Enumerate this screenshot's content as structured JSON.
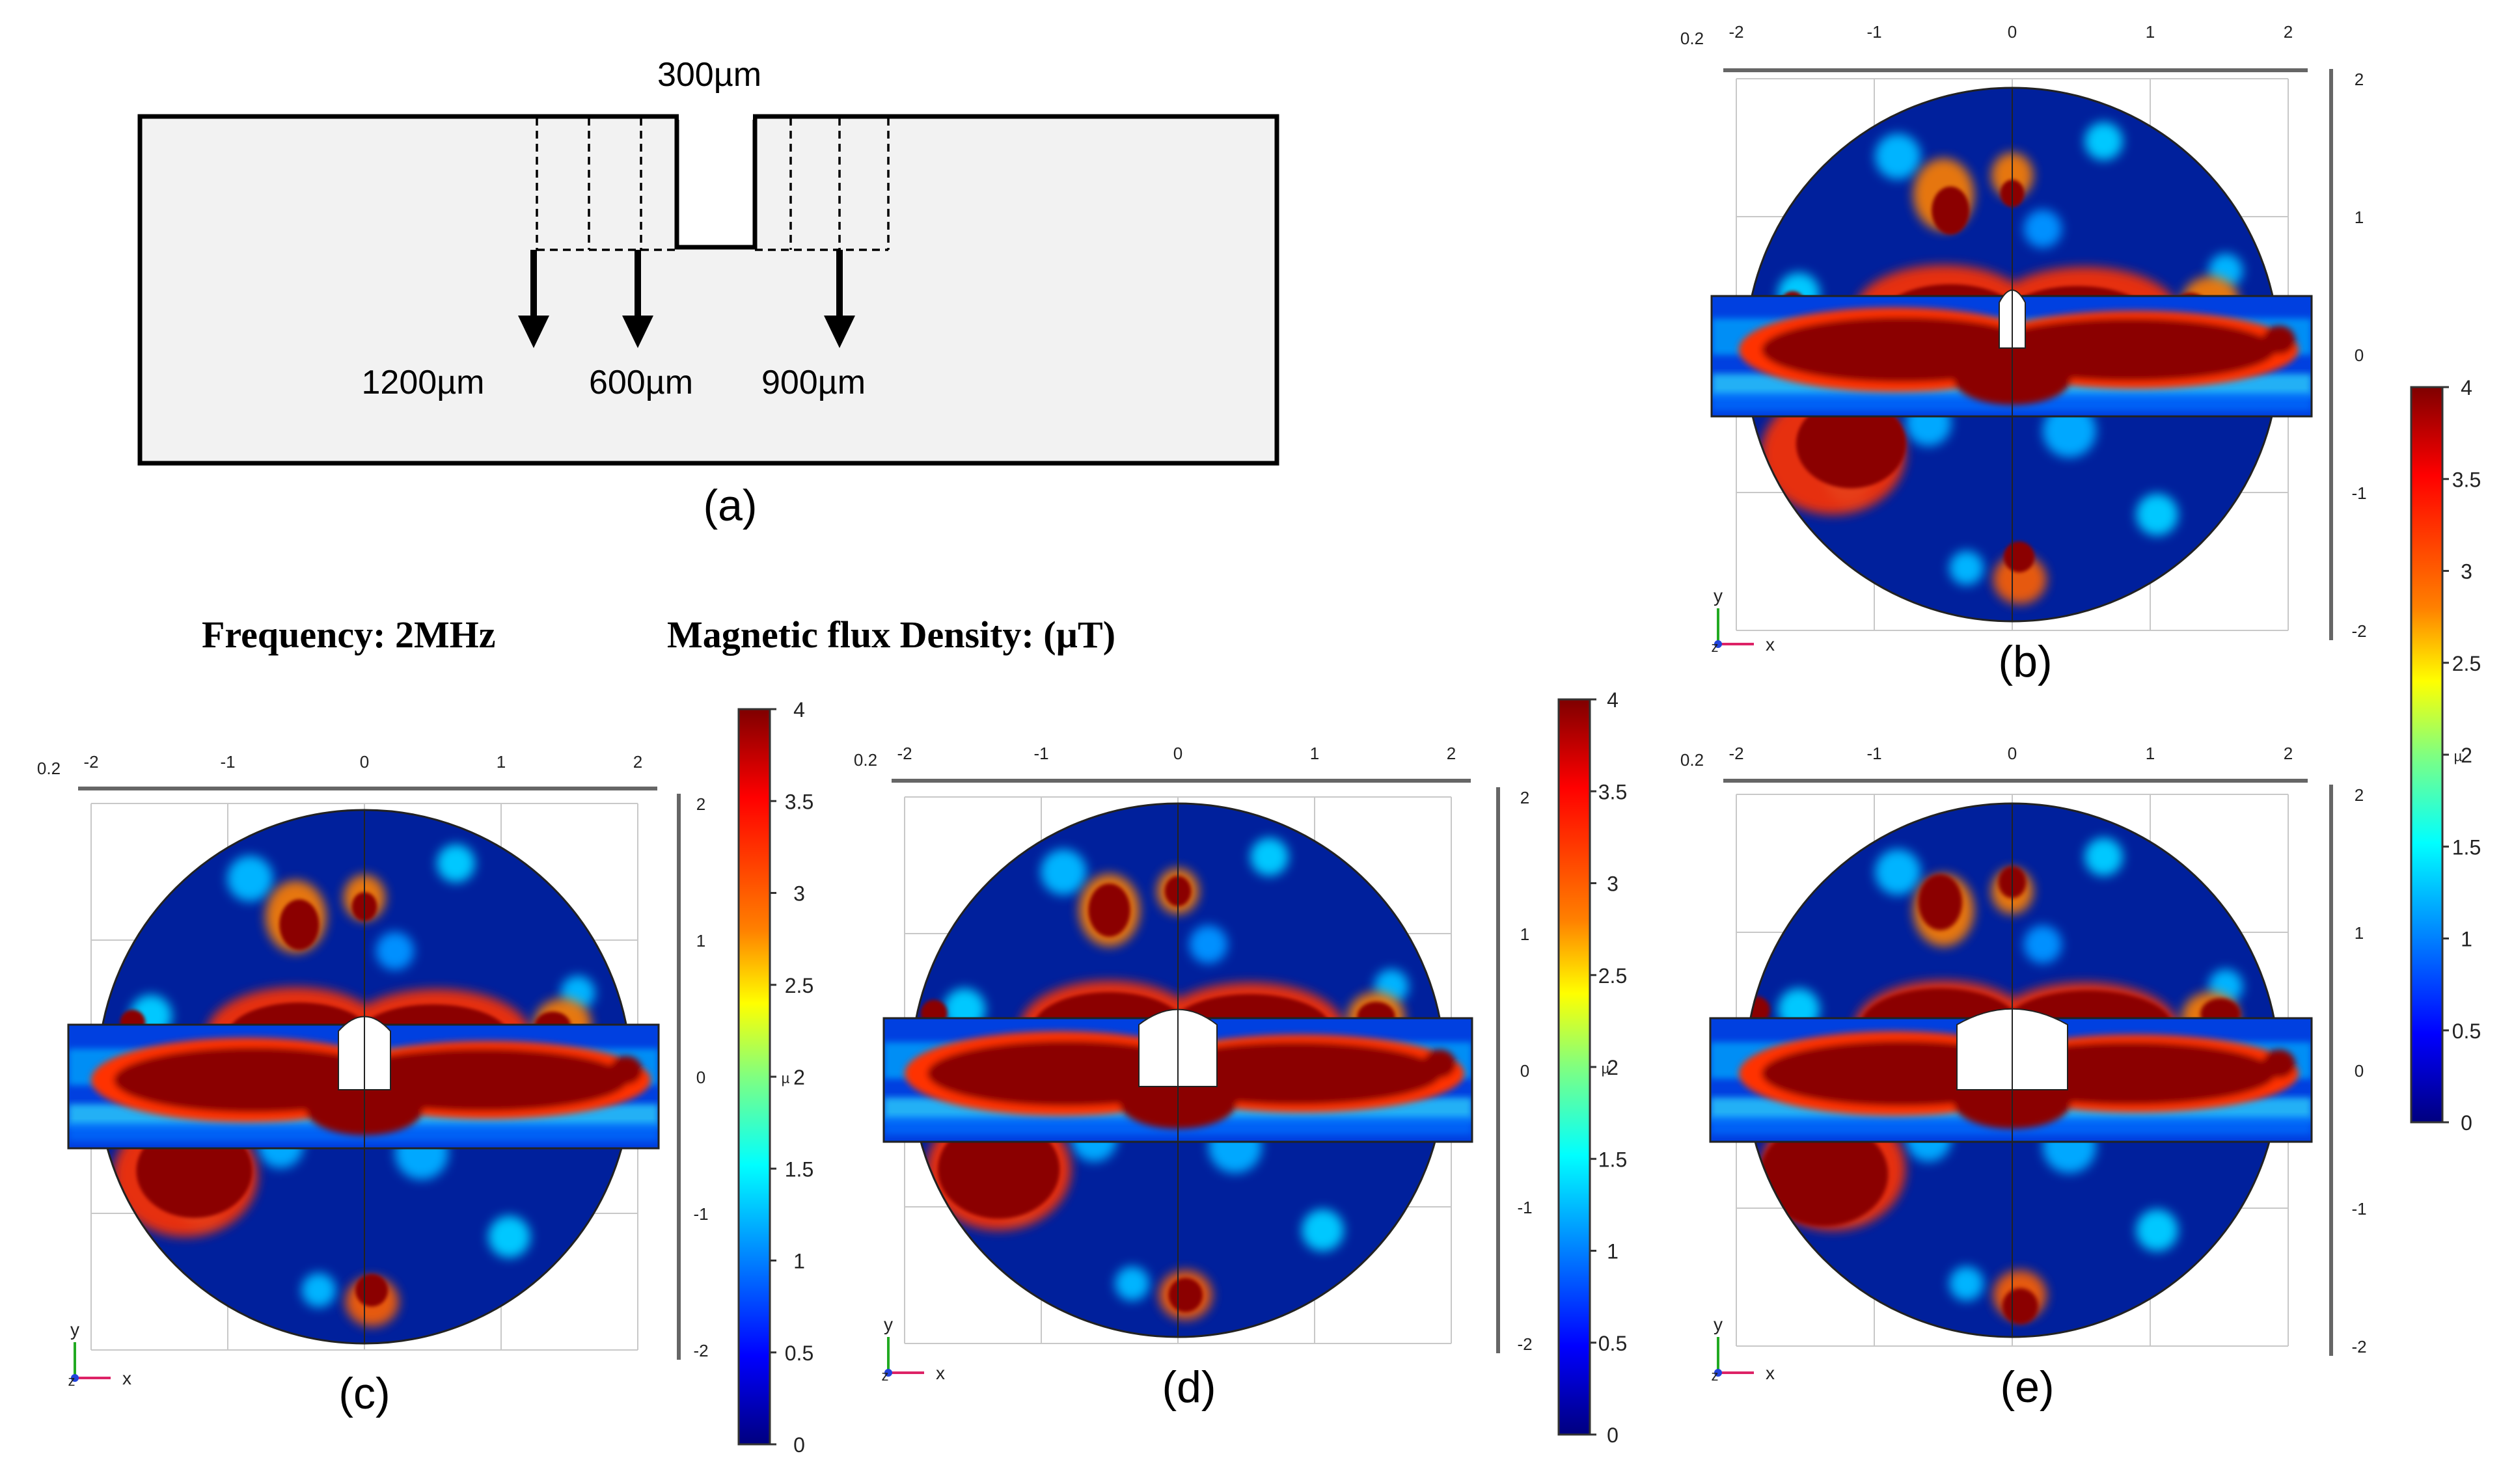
{
  "panel_a": {
    "notch_width_label": "300µm",
    "depth_labels": [
      "1200µm",
      "600µm",
      "900µm"
    ],
    "caption": "(a)"
  },
  "header": {
    "frequency_label": "Frequency: 2MHz",
    "quantity_label": "Magnetic flux Density: (µT)"
  },
  "plot_axes": {
    "corner_label": "0.2",
    "x_ticks": [
      "-2",
      "-1",
      "0",
      "1",
      "2"
    ],
    "y_ticks": [
      "2",
      "1",
      "0",
      "-1",
      "-2"
    ],
    "axis_x": "x",
    "axis_y": "y",
    "axis_z": "z",
    "colorbar_unit_glyph": "µ"
  },
  "colorbar": {
    "ticks": [
      "4",
      "3.5",
      "3",
      "2.5",
      "2",
      "1.5",
      "1",
      "0.5",
      "0"
    ],
    "stops": [
      "#7f0000",
      "#ff0000",
      "#ff8000",
      "#ffff00",
      "#80ff80",
      "#00ffff",
      "#0080ff",
      "#0000ff",
      "#00007f"
    ]
  },
  "panels": [
    {
      "id": "b",
      "caption": "(b)",
      "notch_depth_um": 300
    },
    {
      "id": "c",
      "caption": "(c)",
      "notch_depth_um": 600
    },
    {
      "id": "d",
      "caption": "(d)",
      "notch_depth_um": 900
    },
    {
      "id": "e",
      "caption": "(e)",
      "notch_depth_um": 1200
    }
  ],
  "colors": {
    "background": "#00209c",
    "low": "#0050ff",
    "mid": "#00c8ff",
    "hot": "#8b0000"
  }
}
